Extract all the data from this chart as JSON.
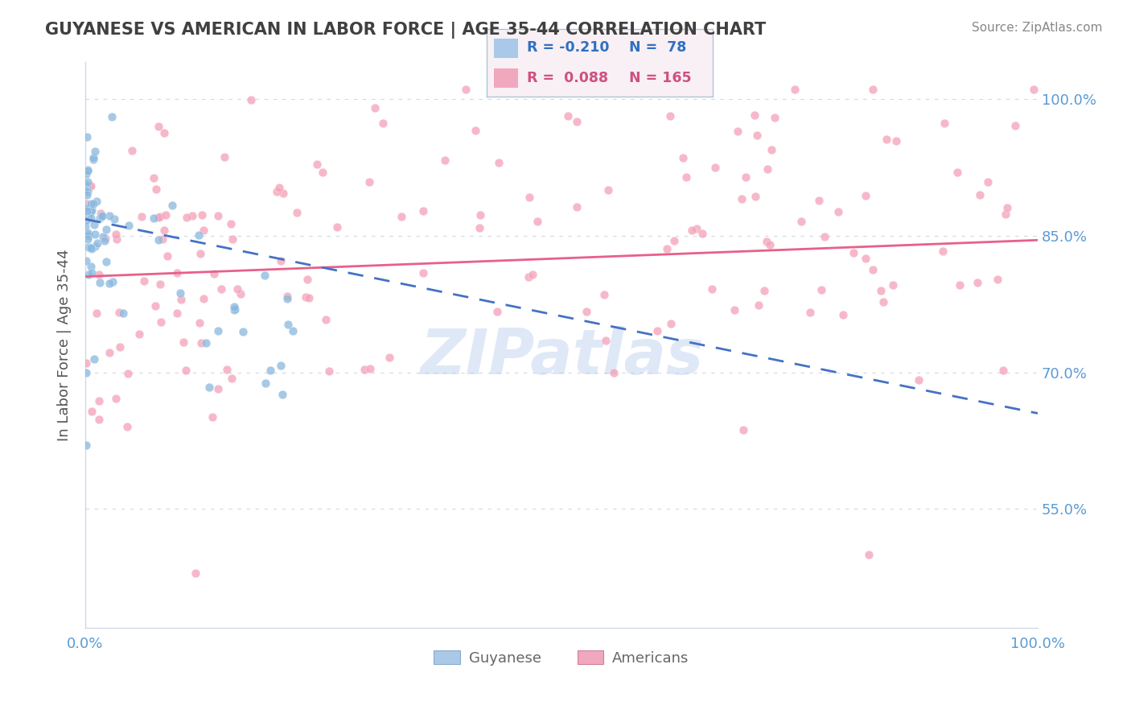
{
  "title": "GUYANESE VS AMERICAN IN LABOR FORCE | AGE 35-44 CORRELATION CHART",
  "source": "Source: ZipAtlas.com",
  "ylabel": "In Labor Force | Age 35-44",
  "xlim": [
    0.0,
    1.0
  ],
  "ylim": [
    0.42,
    1.04
  ],
  "x_ticks": [
    0.0,
    0.1,
    0.2,
    0.3,
    0.4,
    0.5,
    0.6,
    0.7,
    0.8,
    0.9,
    1.0
  ],
  "x_tick_labels": [
    "0.0%",
    "",
    "",
    "",
    "",
    "",
    "",
    "",
    "",
    "",
    "100.0%"
  ],
  "y_ticks_right": [
    0.55,
    0.7,
    0.85,
    1.0
  ],
  "y_tick_labels_right": [
    "55.0%",
    "70.0%",
    "85.0%",
    "100.0%"
  ],
  "guyanese_color": "#89b8de",
  "americans_color": "#f4a0b8",
  "guyanese_line_color": "#4472c4",
  "americans_line_color": "#e8608a",
  "guyanese_R": -0.21,
  "guyanese_N": 78,
  "americans_R": 0.088,
  "americans_N": 165,
  "watermark": "ZIPatlas",
  "background_color": "#ffffff",
  "grid_color": "#d0d8e8",
  "title_color": "#404040",
  "tick_color": "#5b9bd5",
  "legend_box_color": "#e8f0f8",
  "legend_border_color": "#b0c4d8"
}
